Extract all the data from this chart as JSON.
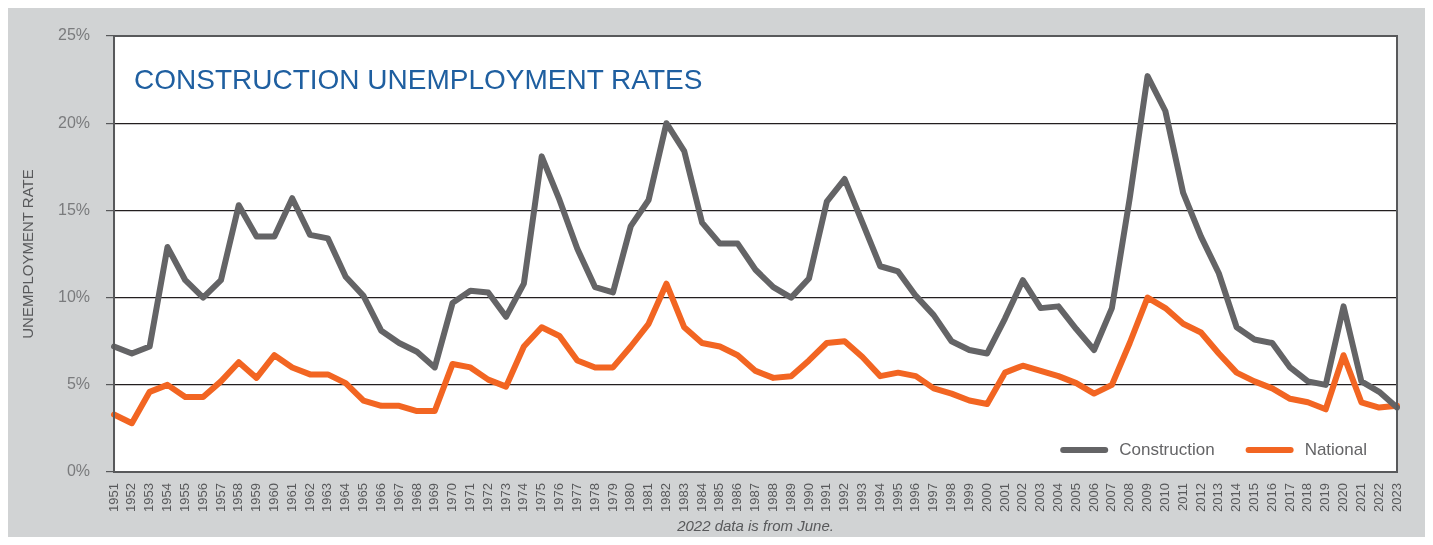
{
  "chart_data": {
    "type": "line",
    "title": "CONSTRUCTION UNEMPLOYMENT RATES",
    "ylabel": "UNEMPLOYMENT RATE",
    "annotations": [
      "2022 data is from June."
    ],
    "categories": [
      "1951",
      "1952",
      "1953",
      "1954",
      "1955",
      "1956",
      "1957",
      "1958",
      "1959",
      "1960",
      "1961",
      "1962",
      "1963",
      "1964",
      "1965",
      "1966",
      "1967",
      "1968",
      "1969",
      "1970",
      "1971",
      "1972",
      "1973",
      "1974",
      "1975",
      "1976",
      "1977",
      "1978",
      "1979",
      "1980",
      "1981",
      "1982",
      "1983",
      "1984",
      "1985",
      "1986",
      "1987",
      "1988",
      "1989",
      "1990",
      "1991",
      "1992",
      "1993",
      "1994",
      "1995",
      "1996",
      "1997",
      "1998",
      "1999",
      "2000",
      "2001",
      "2002",
      "2003",
      "2004",
      "2005",
      "2006",
      "2007",
      "2008",
      "2009",
      "2010",
      "2011",
      "2012",
      "2013",
      "2014",
      "2015",
      "2016",
      "2017",
      "2018",
      "2019",
      "2020",
      "2021",
      "2022",
      "2023"
    ],
    "series": [
      {
        "name": "Construction",
        "color": "#646466",
        "values": [
          7.2,
          6.8,
          7.2,
          12.9,
          11.0,
          10.0,
          11.0,
          15.3,
          13.5,
          13.5,
          15.7,
          13.6,
          13.4,
          11.2,
          10.1,
          8.1,
          7.4,
          6.9,
          6.0,
          9.7,
          10.4,
          10.3,
          8.9,
          10.8,
          18.1,
          15.6,
          12.8,
          10.6,
          10.3,
          14.1,
          15.6,
          20.0,
          18.4,
          14.3,
          13.1,
          13.1,
          11.6,
          10.6,
          10.0,
          11.1,
          15.5,
          16.8,
          14.3,
          11.8,
          11.5,
          10.1,
          9.0,
          7.5,
          7.0,
          6.8,
          8.8,
          11.0,
          9.4,
          9.5,
          8.2,
          7.0,
          9.4,
          15.7,
          22.7,
          20.7,
          16.0,
          13.5,
          11.4,
          8.3,
          7.6,
          7.4,
          6.0,
          5.2,
          5.0,
          9.5,
          5.2,
          4.6,
          3.7
        ]
      },
      {
        "name": "National",
        "color": "#f26522",
        "values": [
          3.3,
          2.8,
          4.6,
          5.0,
          4.3,
          4.3,
          5.2,
          6.3,
          5.4,
          6.7,
          6.0,
          5.6,
          5.6,
          5.1,
          4.1,
          3.8,
          3.8,
          3.5,
          3.5,
          6.2,
          6.0,
          5.3,
          4.9,
          7.2,
          8.3,
          7.8,
          6.4,
          6.0,
          6.0,
          7.2,
          8.5,
          10.8,
          8.3,
          7.4,
          7.2,
          6.7,
          5.8,
          5.4,
          5.5,
          6.4,
          7.4,
          7.5,
          6.6,
          5.5,
          5.7,
          5.5,
          4.8,
          4.5,
          4.1,
          3.9,
          5.7,
          6.1,
          5.8,
          5.5,
          5.1,
          4.5,
          5.0,
          7.4,
          10.0,
          9.4,
          8.5,
          8.0,
          6.8,
          5.7,
          5.2,
          4.8,
          4.2,
          4.0,
          3.6,
          6.7,
          4.0,
          3.7,
          3.8
        ]
      }
    ],
    "ylim": [
      0,
      25
    ],
    "yticks": [
      {
        "value": 0,
        "label": "0%"
      },
      {
        "value": 5,
        "label": "5%"
      },
      {
        "value": 10,
        "label": "10%"
      },
      {
        "value": 15,
        "label": "15%"
      },
      {
        "value": 20,
        "label": "20%"
      },
      {
        "value": 25,
        "label": "25%"
      }
    ],
    "grid": "y",
    "legend": "bottom right",
    "marker": "none",
    "line_style": "solid"
  }
}
